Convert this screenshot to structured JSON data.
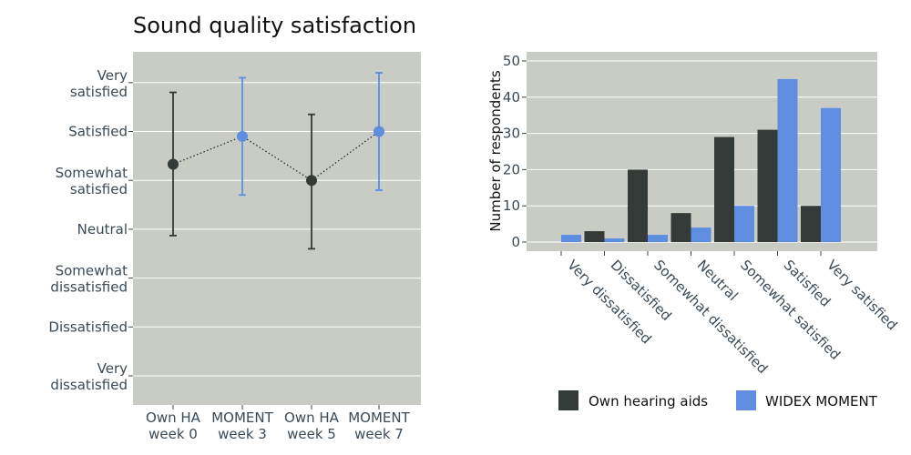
{
  "chart_data": [
    {
      "type": "scatter",
      "title": "Sound quality satisfaction",
      "y_categories": [
        "Very dissatisfied",
        "Dissatisfied",
        "Somewhat dissatisfied",
        "Neutral",
        "Somewhat satisfied",
        "Satisfied",
        "Very satisfied"
      ],
      "y_tick_lines": [
        [
          "Very",
          "dissatisfied"
        ],
        [
          "Dissatisfied"
        ],
        [
          "Somewhat",
          "dissatisfied"
        ],
        [
          "Neutral"
        ],
        [
          "Somewhat",
          "satisfied"
        ],
        [
          "Satisfied"
        ],
        [
          "Very",
          "satisfied"
        ]
      ],
      "ylim": [
        1,
        7
      ],
      "x_categories": [
        [
          "Own HA",
          "week 0"
        ],
        [
          "MOMENT",
          "week 3"
        ],
        [
          "Own HA",
          "week 5"
        ],
        [
          "MOMENT",
          "week 7"
        ]
      ],
      "points": [
        {
          "mean": 5.33,
          "low": 3.87,
          "high": 6.8,
          "color": "#333a37"
        },
        {
          "mean": 5.9,
          "low": 4.7,
          "high": 7.1,
          "color": "#5f8de0"
        },
        {
          "mean": 5.0,
          "low": 3.6,
          "high": 6.35,
          "color": "#333a37"
        },
        {
          "mean": 6.0,
          "low": 4.8,
          "high": 7.2,
          "color": "#5f8de0"
        }
      ],
      "connector": "dotted",
      "grid": true,
      "background": "#c8ccc4"
    },
    {
      "type": "bar",
      "categories": [
        "Very dissatisfied",
        "Dissatisfied",
        "Somewhat dissatisfied",
        "Neutral",
        "Somewhat satisfied",
        "Satisfied",
        "Very satisfied"
      ],
      "series": [
        {
          "name": "Own hearing aids",
          "values": [
            0,
            3,
            20,
            8,
            29,
            31,
            10
          ],
          "color": "#333a37"
        },
        {
          "name": "WIDEX MOMENT",
          "values": [
            2,
            1,
            2,
            4,
            10,
            45,
            37
          ],
          "color": "#5f8de0"
        }
      ],
      "ylabel": "Number of respondents",
      "ylim": [
        0,
        52
      ],
      "yticks": [
        0,
        10,
        20,
        30,
        40,
        50
      ],
      "grid": true,
      "legend": "bottom",
      "background": "#c8ccc4"
    }
  ]
}
